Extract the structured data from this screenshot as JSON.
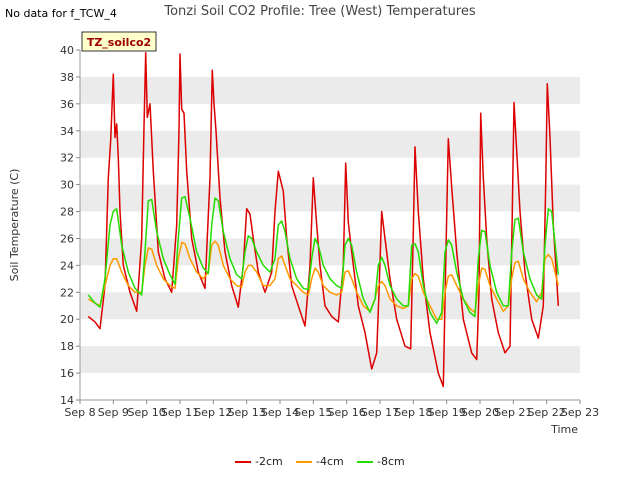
{
  "header": {
    "title": "Tonzi Soil CO2 Profile: Tree (West) Temperatures",
    "no_data_note": "No data for f_TCW_4",
    "badge": "TZ_soilco2"
  },
  "colors": {
    "-2cm": "#dd0000",
    "-4cm": "#ff9900",
    "-8cm": "#22dd00",
    "band": "#ebebeb"
  },
  "chart_data": {
    "type": "line",
    "title": "Tonzi Soil CO2 Profile: Tree (West) Temperatures",
    "xlabel": "Time",
    "ylabel": "Soil Temperature (C)",
    "x_ticks": [
      "Sep 8",
      "Sep 9",
      "Sep 10",
      "Sep 11",
      "Sep 12",
      "Sep 13",
      "Sep 14",
      "Sep 15",
      "Sep 16",
      "Sep 17",
      "Sep 18",
      "Sep 19",
      "Sep 20",
      "Sep 21",
      "Sep 22",
      "Sep 23"
    ],
    "xlim": [
      "Sep 8",
      "Sep 23"
    ],
    "y_ticks": [
      14,
      16,
      18,
      20,
      22,
      24,
      26,
      28,
      30,
      32,
      34,
      36,
      38,
      40
    ],
    "ylim": [
      14,
      40
    ],
    "grid": "alternating horizontal bands",
    "legend_position": "bottom-center",
    "x": [
      "Sep 8 06:00",
      "Sep 8 18:00",
      "Sep 9 00:00",
      "Sep 9 06:00",
      "Sep 9 12:00",
      "Sep 9 18:00",
      "Sep 10 00:00",
      "Sep 10 06:00",
      "Sep 10 12:00",
      "Sep 10 18:00",
      "Sep 11 00:00",
      "Sep 11 06:00",
      "Sep 11 12:00",
      "Sep 11 18:00",
      "Sep 12 00:00",
      "Sep 12 06:00",
      "Sep 12 12:00",
      "Sep 12 18:00",
      "Sep 13 00:00",
      "Sep 13 06:00",
      "Sep 13 12:00",
      "Sep 13 18:00",
      "Sep 14 00:00",
      "Sep 14 06:00",
      "Sep 14 12:00",
      "Sep 14 18:00",
      "Sep 15 00:00",
      "Sep 15 06:00",
      "Sep 15 12:00",
      "Sep 15 18:00",
      "Sep 16 00:00",
      "Sep 16 06:00",
      "Sep 16 12:00",
      "Sep 16 18:00",
      "Sep 17 00:00",
      "Sep 17 06:00",
      "Sep 17 12:00",
      "Sep 17 18:00",
      "Sep 18 00:00",
      "Sep 18 06:00",
      "Sep 18 12:00",
      "Sep 18 18:00",
      "Sep 19 00:00",
      "Sep 19 06:00",
      "Sep 19 12:00",
      "Sep 19 18:00",
      "Sep 20 00:00",
      "Sep 20 06:00",
      "Sep 20 12:00",
      "Sep 20 18:00",
      "Sep 21 00:00",
      "Sep 21 06:00",
      "Sep 21 12:00",
      "Sep 21 18:00",
      "Sep 22 00:00",
      "Sep 22 06:00",
      "Sep 22 12:00",
      "Sep 22 06:00"
    ],
    "series": [
      {
        "name": "-2cm",
        "color": "#dd0000",
        "x": [
          8.25,
          8.45,
          8.6,
          8.75,
          8.85,
          8.92,
          9.0,
          9.05,
          9.1,
          9.15,
          9.2,
          9.3,
          9.5,
          9.7,
          9.85,
          9.92,
          9.97,
          10.02,
          10.1,
          10.2,
          10.35,
          10.55,
          10.75,
          10.9,
          10.97,
          11.0,
          11.05,
          11.12,
          11.2,
          11.35,
          11.55,
          11.75,
          11.9,
          11.97,
          12.02,
          12.08,
          12.2,
          12.35,
          12.55,
          12.75,
          12.9,
          13.0,
          13.1,
          13.2,
          13.35,
          13.55,
          13.75,
          13.85,
          13.95,
          14.0,
          14.1,
          14.2,
          14.35,
          14.55,
          14.75,
          14.9,
          15.0,
          15.1,
          15.2,
          15.35,
          15.55,
          15.75,
          15.9,
          15.97,
          16.05,
          16.15,
          16.35,
          16.55,
          16.75,
          16.9,
          16.97,
          17.05,
          17.15,
          17.3,
          17.5,
          17.75,
          17.92,
          18.0,
          18.05,
          18.15,
          18.3,
          18.5,
          18.75,
          18.9,
          18.97,
          19.05,
          19.15,
          19.3,
          19.5,
          19.75,
          19.9,
          19.97,
          20.02,
          20.1,
          20.2,
          20.35,
          20.55,
          20.75,
          20.9,
          20.97,
          21.02,
          21.1,
          21.2,
          21.35,
          21.55,
          21.75,
          21.9,
          21.97,
          22.02,
          22.1,
          22.2,
          22.35
        ],
        "y": [
          20.2,
          19.8,
          19.3,
          22.5,
          30.5,
          33.3,
          38.2,
          33.5,
          34.5,
          32.0,
          28.0,
          24.0,
          22.0,
          20.6,
          26.0,
          34.3,
          39.8,
          35.0,
          36.0,
          31.0,
          25.0,
          23.0,
          22.0,
          27.0,
          34.0,
          39.7,
          35.6,
          35.3,
          31.0,
          26.0,
          23.5,
          22.3,
          30.5,
          38.5,
          36.0,
          34.0,
          29.0,
          25.0,
          22.5,
          20.9,
          24.0,
          28.2,
          27.8,
          26.0,
          23.5,
          22.0,
          23.5,
          28.0,
          31.0,
          30.5,
          29.5,
          26.0,
          22.5,
          21.0,
          19.5,
          24.0,
          30.5,
          27.0,
          24.0,
          21.0,
          20.2,
          19.8,
          24.0,
          31.6,
          27.2,
          25.0,
          21.0,
          19.0,
          16.3,
          17.5,
          22.0,
          28.0,
          26.0,
          23.0,
          20.0,
          18.0,
          17.8,
          26.5,
          32.8,
          28.0,
          23.0,
          19.0,
          16.0,
          15.0,
          24.0,
          33.4,
          29.8,
          25.0,
          20.0,
          17.5,
          17.0,
          22.0,
          35.3,
          30.5,
          26.0,
          21.5,
          19.0,
          17.5,
          18.0,
          28.0,
          36.1,
          32.5,
          28.0,
          23.5,
          20.0,
          18.6,
          21.0,
          30.0,
          37.5,
          33.5,
          27.0,
          21.0
        ]
      },
      {
        "name": "-4cm",
        "color": "#ff9900",
        "x": [
          8.25,
          8.45,
          8.6,
          8.75,
          8.9,
          9.0,
          9.1,
          9.25,
          9.45,
          9.65,
          9.85,
          9.95,
          10.05,
          10.15,
          10.3,
          10.5,
          10.7,
          10.85,
          10.95,
          11.05,
          11.15,
          11.3,
          11.5,
          11.7,
          11.85,
          11.95,
          12.05,
          12.15,
          12.3,
          12.5,
          12.7,
          12.85,
          12.95,
          13.05,
          13.15,
          13.3,
          13.5,
          13.7,
          13.85,
          13.95,
          14.05,
          14.15,
          14.3,
          14.5,
          14.7,
          14.85,
          14.95,
          15.05,
          15.15,
          15.3,
          15.5,
          15.7,
          15.85,
          15.95,
          16.05,
          16.15,
          16.3,
          16.5,
          16.7,
          16.85,
          16.95,
          17.05,
          17.15,
          17.3,
          17.5,
          17.7,
          17.85,
          17.95,
          18.05,
          18.15,
          18.3,
          18.5,
          18.7,
          18.85,
          18.95,
          19.05,
          19.15,
          19.3,
          19.5,
          19.7,
          19.85,
          19.95,
          20.05,
          20.15,
          20.3,
          20.5,
          20.7,
          20.85,
          20.95,
          21.05,
          21.15,
          21.3,
          21.5,
          21.7,
          21.85,
          21.95,
          22.05,
          22.15,
          22.35
        ],
        "y": [
          21.5,
          21.2,
          21.0,
          22.5,
          24.0,
          24.5,
          24.5,
          23.5,
          22.5,
          22.0,
          22.0,
          24.0,
          25.3,
          25.2,
          24.0,
          23.0,
          22.5,
          22.3,
          24.5,
          25.7,
          25.6,
          24.5,
          23.5,
          23.0,
          23.5,
          25.5,
          25.8,
          25.5,
          24.0,
          23.0,
          22.5,
          22.4,
          23.5,
          24.0,
          24.0,
          23.5,
          22.5,
          22.5,
          23.0,
          24.5,
          24.7,
          24.0,
          23.0,
          22.5,
          22.0,
          21.8,
          23.0,
          23.8,
          23.5,
          22.5,
          22.0,
          21.8,
          22.0,
          23.5,
          23.6,
          23.0,
          22.0,
          21.0,
          20.6,
          21.5,
          22.5,
          22.8,
          22.5,
          21.5,
          21.0,
          20.8,
          21.0,
          23.0,
          23.4,
          23.2,
          22.0,
          21.0,
          20.0,
          20.0,
          22.0,
          23.2,
          23.3,
          22.5,
          21.5,
          20.8,
          20.5,
          22.5,
          23.8,
          23.7,
          22.5,
          21.5,
          20.6,
          21.0,
          23.0,
          24.2,
          24.3,
          23.0,
          22.0,
          21.3,
          22.0,
          24.5,
          24.8,
          24.5,
          22.5
        ]
      },
      {
        "name": "-8cm",
        "color": "#22dd00",
        "x": [
          8.25,
          8.45,
          8.6,
          8.75,
          8.9,
          9.0,
          9.1,
          9.25,
          9.45,
          9.65,
          9.85,
          9.95,
          10.05,
          10.15,
          10.3,
          10.5,
          10.7,
          10.85,
          10.95,
          11.05,
          11.15,
          11.3,
          11.5,
          11.7,
          11.85,
          11.95,
          12.05,
          12.15,
          12.3,
          12.5,
          12.7,
          12.85,
          12.95,
          13.05,
          13.15,
          13.3,
          13.5,
          13.7,
          13.85,
          13.95,
          14.05,
          14.15,
          14.3,
          14.5,
          14.7,
          14.85,
          14.95,
          15.05,
          15.15,
          15.3,
          15.5,
          15.7,
          15.85,
          15.95,
          16.05,
          16.15,
          16.3,
          16.5,
          16.7,
          16.85,
          16.95,
          17.05,
          17.15,
          17.3,
          17.5,
          17.7,
          17.85,
          17.95,
          18.05,
          18.15,
          18.3,
          18.5,
          18.7,
          18.85,
          18.95,
          19.05,
          19.15,
          19.3,
          19.5,
          19.7,
          19.85,
          19.95,
          20.05,
          20.15,
          20.3,
          20.5,
          20.7,
          20.85,
          20.95,
          21.05,
          21.15,
          21.3,
          21.5,
          21.7,
          21.85,
          21.95,
          22.05,
          22.15,
          22.35
        ],
        "y": [
          21.8,
          21.2,
          20.9,
          23.0,
          27.0,
          28.0,
          28.2,
          25.5,
          23.5,
          22.3,
          21.8,
          25.0,
          28.8,
          28.9,
          26.5,
          24.5,
          23.3,
          22.6,
          26.0,
          29.0,
          29.1,
          27.5,
          25.0,
          23.8,
          23.4,
          27.0,
          29.0,
          28.8,
          26.5,
          24.5,
          23.3,
          23.0,
          25.0,
          26.2,
          26.0,
          25.0,
          24.0,
          23.5,
          24.5,
          27.0,
          27.3,
          26.5,
          24.5,
          23.0,
          22.3,
          22.2,
          24.5,
          26.0,
          25.5,
          24.0,
          23.0,
          22.5,
          22.3,
          25.5,
          26.0,
          25.5,
          23.5,
          21.5,
          20.5,
          21.5,
          24.0,
          24.6,
          24.0,
          22.5,
          21.5,
          21.0,
          21.0,
          25.5,
          25.6,
          25.0,
          22.5,
          20.5,
          19.7,
          20.5,
          25.0,
          25.9,
          25.5,
          23.5,
          21.5,
          20.5,
          20.2,
          24.5,
          26.6,
          26.5,
          24.0,
          22.0,
          21.0,
          21.0,
          25.0,
          27.4,
          27.5,
          25.0,
          23.0,
          21.8,
          21.5,
          25.5,
          28.2,
          28.0,
          23.3
        ]
      }
    ]
  }
}
